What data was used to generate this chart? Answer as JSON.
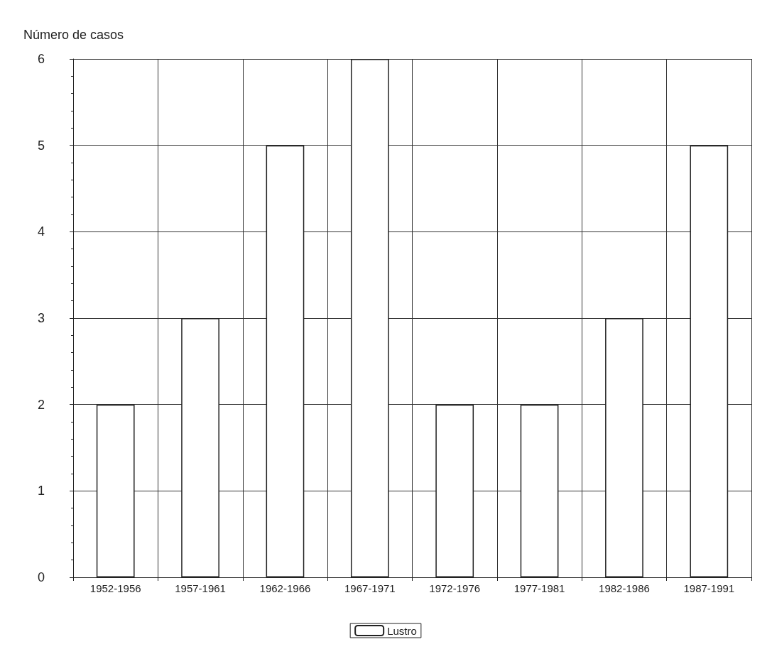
{
  "chart_data": {
    "type": "bar",
    "ylabel": "Número de casos",
    "categories": [
      "1952-1956",
      "1957-1961",
      "1962-1966",
      "1967-1971",
      "1972-1976",
      "1977-1981",
      "1982-1986",
      "1987-1991"
    ],
    "series": [
      {
        "name": "Lustro",
        "color": "#ffffff",
        "values": [
          2,
          3,
          5,
          6,
          2,
          2,
          3,
          5
        ]
      }
    ],
    "ylim": [
      0,
      6
    ],
    "yticks": [
      0,
      1,
      2,
      3,
      4,
      5,
      6
    ],
    "grid": true,
    "legend": "bottom"
  }
}
